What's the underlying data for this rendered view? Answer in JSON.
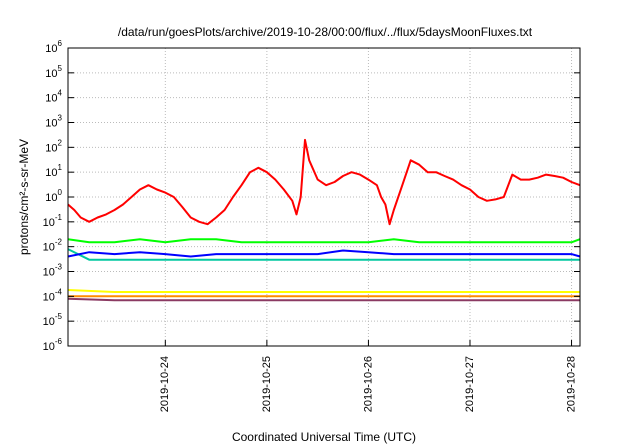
{
  "chart_data": {
    "type": "line",
    "title": "/data/run/goesPlots/archive/2019-10-28/00:00/flux/../flux/5daysMoonFluxes.txt",
    "xlabel": "Coordinated Universal Time (UTC)",
    "ylabel": "protons/cm²-s-sr-MeV",
    "y_scale": "log",
    "ylim": [
      1e-06,
      1000000.0
    ],
    "xlim": [
      "2019-10-23T01:00",
      "2019-10-28T02:00"
    ],
    "y_ticks": [
      {
        "value": 1e-06,
        "exp": "-6"
      },
      {
        "value": 1e-05,
        "exp": "-5"
      },
      {
        "value": 0.0001,
        "exp": "-4"
      },
      {
        "value": 0.001,
        "exp": "-3"
      },
      {
        "value": 0.01,
        "exp": "-2"
      },
      {
        "value": 0.1,
        "exp": "-1"
      },
      {
        "value": 1,
        "exp": "0"
      },
      {
        "value": 10,
        "exp": "1"
      },
      {
        "value": 100,
        "exp": "2"
      },
      {
        "value": 1000,
        "exp": "3"
      },
      {
        "value": 10000,
        "exp": "4"
      },
      {
        "value": 100000,
        "exp": "5"
      },
      {
        "value": 1000000,
        "exp": "6"
      }
    ],
    "x_ticks": [
      {
        "value": "2019-10-24T00:00",
        "label": "2019-10-24"
      },
      {
        "value": "2019-10-25T00:00",
        "label": "2019-10-25"
      },
      {
        "value": "2019-10-26T00:00",
        "label": "2019-10-26"
      },
      {
        "value": "2019-10-27T00:00",
        "label": "2019-10-27"
      },
      {
        "value": "2019-10-28T00:00",
        "label": "2019-10-28"
      }
    ],
    "grid": true,
    "legend": "none",
    "series": [
      {
        "color": "#ff0000",
        "points": [
          [
            "2019-10-23T01:00",
            0.5
          ],
          [
            "2019-10-23T02:30",
            0.3
          ],
          [
            "2019-10-23T04:00",
            0.15
          ],
          [
            "2019-10-23T06:00",
            0.1
          ],
          [
            "2019-10-23T08:00",
            0.15
          ],
          [
            "2019-10-23T10:00",
            0.2
          ],
          [
            "2019-10-23T12:00",
            0.3
          ],
          [
            "2019-10-23T14:00",
            0.5
          ],
          [
            "2019-10-23T16:00",
            1.0
          ],
          [
            "2019-10-23T18:00",
            2.0
          ],
          [
            "2019-10-23T20:00",
            3.0
          ],
          [
            "2019-10-23T22:00",
            2.0
          ],
          [
            "2019-10-24T00:00",
            1.5
          ],
          [
            "2019-10-24T02:00",
            1.0
          ],
          [
            "2019-10-24T04:00",
            0.4
          ],
          [
            "2019-10-24T06:00",
            0.15
          ],
          [
            "2019-10-24T08:00",
            0.1
          ],
          [
            "2019-10-24T10:00",
            0.08
          ],
          [
            "2019-10-24T12:00",
            0.15
          ],
          [
            "2019-10-24T14:00",
            0.3
          ],
          [
            "2019-10-24T16:00",
            1.0
          ],
          [
            "2019-10-24T18:00",
            3.0
          ],
          [
            "2019-10-24T20:00",
            10
          ],
          [
            "2019-10-24T22:00",
            15
          ],
          [
            "2019-10-25T00:00",
            10
          ],
          [
            "2019-10-25T02:00",
            5
          ],
          [
            "2019-10-25T04:00",
            2.0
          ],
          [
            "2019-10-25T06:00",
            0.7
          ],
          [
            "2019-10-25T07:00",
            0.2
          ],
          [
            "2019-10-25T08:00",
            1.0
          ],
          [
            "2019-10-25T09:00",
            200
          ],
          [
            "2019-10-25T10:00",
            30
          ],
          [
            "2019-10-25T12:00",
            5
          ],
          [
            "2019-10-25T14:00",
            3
          ],
          [
            "2019-10-25T16:00",
            4
          ],
          [
            "2019-10-25T18:00",
            7
          ],
          [
            "2019-10-25T20:00",
            10
          ],
          [
            "2019-10-25T22:00",
            8
          ],
          [
            "2019-10-26T00:00",
            5
          ],
          [
            "2019-10-26T02:00",
            3
          ],
          [
            "2019-10-26T03:00",
            1.0
          ],
          [
            "2019-10-26T04:00",
            0.5
          ],
          [
            "2019-10-26T05:00",
            0.08
          ],
          [
            "2019-10-26T06:00",
            0.3
          ],
          [
            "2019-10-26T08:00",
            3
          ],
          [
            "2019-10-26T10:00",
            30
          ],
          [
            "2019-10-26T12:00",
            20
          ],
          [
            "2019-10-26T14:00",
            10
          ],
          [
            "2019-10-26T16:00",
            10
          ],
          [
            "2019-10-26T18:00",
            7
          ],
          [
            "2019-10-26T20:00",
            5
          ],
          [
            "2019-10-26T22:00",
            3
          ],
          [
            "2019-10-27T00:00",
            2
          ],
          [
            "2019-10-27T02:00",
            1.0
          ],
          [
            "2019-10-27T04:00",
            0.7
          ],
          [
            "2019-10-27T06:00",
            0.8
          ],
          [
            "2019-10-27T08:00",
            1.0
          ],
          [
            "2019-10-27T10:00",
            8
          ],
          [
            "2019-10-27T12:00",
            5
          ],
          [
            "2019-10-27T14:00",
            5
          ],
          [
            "2019-10-27T16:00",
            6
          ],
          [
            "2019-10-27T18:00",
            8
          ],
          [
            "2019-10-27T20:00",
            7
          ],
          [
            "2019-10-27T22:00",
            6
          ],
          [
            "2019-10-28T00:00",
            4
          ],
          [
            "2019-10-28T02:00",
            3
          ]
        ]
      },
      {
        "color": "#00ff00",
        "points": [
          [
            "2019-10-23T01:00",
            0.02
          ],
          [
            "2019-10-23T06:00",
            0.015
          ],
          [
            "2019-10-23T12:00",
            0.015
          ],
          [
            "2019-10-23T18:00",
            0.02
          ],
          [
            "2019-10-24T00:00",
            0.015
          ],
          [
            "2019-10-24T06:00",
            0.02
          ],
          [
            "2019-10-24T12:00",
            0.02
          ],
          [
            "2019-10-24T18:00",
            0.015
          ],
          [
            "2019-10-25T00:00",
            0.015
          ],
          [
            "2019-10-25T06:00",
            0.015
          ],
          [
            "2019-10-25T12:00",
            0.015
          ],
          [
            "2019-10-25T18:00",
            0.015
          ],
          [
            "2019-10-26T00:00",
            0.015
          ],
          [
            "2019-10-26T06:00",
            0.02
          ],
          [
            "2019-10-26T12:00",
            0.015
          ],
          [
            "2019-10-26T18:00",
            0.015
          ],
          [
            "2019-10-27T00:00",
            0.015
          ],
          [
            "2019-10-27T06:00",
            0.015
          ],
          [
            "2019-10-27T12:00",
            0.015
          ],
          [
            "2019-10-27T18:00",
            0.015
          ],
          [
            "2019-10-28T00:00",
            0.015
          ],
          [
            "2019-10-28T02:00",
            0.02
          ]
        ]
      },
      {
        "color": "#00c8a0",
        "points": [
          [
            "2019-10-23T01:00",
            0.008
          ],
          [
            "2019-10-23T06:00",
            0.003
          ],
          [
            "2019-10-23T12:00",
            0.003
          ],
          [
            "2019-10-23T18:00",
            0.003
          ],
          [
            "2019-10-24T00:00",
            0.003
          ],
          [
            "2019-10-24T06:00",
            0.003
          ],
          [
            "2019-10-24T12:00",
            0.003
          ],
          [
            "2019-10-24T18:00",
            0.003
          ],
          [
            "2019-10-25T00:00",
            0.003
          ],
          [
            "2019-10-25T06:00",
            0.003
          ],
          [
            "2019-10-25T12:00",
            0.003
          ],
          [
            "2019-10-25T18:00",
            0.003
          ],
          [
            "2019-10-26T00:00",
            0.003
          ],
          [
            "2019-10-26T06:00",
            0.003
          ],
          [
            "2019-10-26T12:00",
            0.003
          ],
          [
            "2019-10-26T18:00",
            0.003
          ],
          [
            "2019-10-27T00:00",
            0.003
          ],
          [
            "2019-10-27T06:00",
            0.003
          ],
          [
            "2019-10-27T12:00",
            0.003
          ],
          [
            "2019-10-27T18:00",
            0.003
          ],
          [
            "2019-10-28T00:00",
            0.003
          ],
          [
            "2019-10-28T02:00",
            0.003
          ]
        ]
      },
      {
        "color": "#0000ff",
        "points": [
          [
            "2019-10-23T01:00",
            0.004
          ],
          [
            "2019-10-23T06:00",
            0.006
          ],
          [
            "2019-10-23T12:00",
            0.005
          ],
          [
            "2019-10-23T18:00",
            0.006
          ],
          [
            "2019-10-24T00:00",
            0.005
          ],
          [
            "2019-10-24T06:00",
            0.004
          ],
          [
            "2019-10-24T12:00",
            0.005
          ],
          [
            "2019-10-24T18:00",
            0.005
          ],
          [
            "2019-10-25T00:00",
            0.005
          ],
          [
            "2019-10-25T06:00",
            0.005
          ],
          [
            "2019-10-25T12:00",
            0.005
          ],
          [
            "2019-10-25T18:00",
            0.007
          ],
          [
            "2019-10-26T00:00",
            0.006
          ],
          [
            "2019-10-26T06:00",
            0.005
          ],
          [
            "2019-10-26T12:00",
            0.005
          ],
          [
            "2019-10-26T18:00",
            0.005
          ],
          [
            "2019-10-27T00:00",
            0.005
          ],
          [
            "2019-10-27T06:00",
            0.005
          ],
          [
            "2019-10-27T12:00",
            0.005
          ],
          [
            "2019-10-27T18:00",
            0.005
          ],
          [
            "2019-10-28T00:00",
            0.005
          ],
          [
            "2019-10-28T02:00",
            0.004
          ]
        ]
      },
      {
        "color": "#ffff00",
        "points": [
          [
            "2019-10-23T01:00",
            0.00018
          ],
          [
            "2019-10-23T12:00",
            0.00015
          ],
          [
            "2019-10-24T00:00",
            0.00015
          ],
          [
            "2019-10-24T12:00",
            0.00015
          ],
          [
            "2019-10-25T00:00",
            0.00015
          ],
          [
            "2019-10-25T12:00",
            0.00015
          ],
          [
            "2019-10-26T00:00",
            0.00015
          ],
          [
            "2019-10-26T12:00",
            0.00015
          ],
          [
            "2019-10-27T00:00",
            0.00015
          ],
          [
            "2019-10-27T12:00",
            0.00015
          ],
          [
            "2019-10-28T00:00",
            0.00015
          ],
          [
            "2019-10-28T02:00",
            0.00015
          ]
        ]
      },
      {
        "color": "#ff8c00",
        "points": [
          [
            "2019-10-23T01:00",
            0.0001
          ],
          [
            "2019-10-23T12:00",
            0.0001
          ],
          [
            "2019-10-24T00:00",
            0.0001
          ],
          [
            "2019-10-24T12:00",
            0.0001
          ],
          [
            "2019-10-25T00:00",
            0.0001
          ],
          [
            "2019-10-25T12:00",
            0.0001
          ],
          [
            "2019-10-26T00:00",
            0.0001
          ],
          [
            "2019-10-26T12:00",
            0.0001
          ],
          [
            "2019-10-27T00:00",
            0.0001
          ],
          [
            "2019-10-27T12:00",
            0.0001
          ],
          [
            "2019-10-28T00:00",
            0.0001
          ],
          [
            "2019-10-28T02:00",
            0.0001
          ]
        ]
      },
      {
        "color": "#8b3a62",
        "points": [
          [
            "2019-10-23T01:00",
            8e-05
          ],
          [
            "2019-10-23T12:00",
            7e-05
          ],
          [
            "2019-10-24T00:00",
            7e-05
          ],
          [
            "2019-10-24T12:00",
            7e-05
          ],
          [
            "2019-10-25T00:00",
            7e-05
          ],
          [
            "2019-10-25T12:00",
            7e-05
          ],
          [
            "2019-10-26T00:00",
            7e-05
          ],
          [
            "2019-10-26T12:00",
            7e-05
          ],
          [
            "2019-10-27T00:00",
            7e-05
          ],
          [
            "2019-10-27T12:00",
            7e-05
          ],
          [
            "2019-10-28T00:00",
            7e-05
          ],
          [
            "2019-10-28T02:00",
            7e-05
          ]
        ]
      }
    ]
  }
}
